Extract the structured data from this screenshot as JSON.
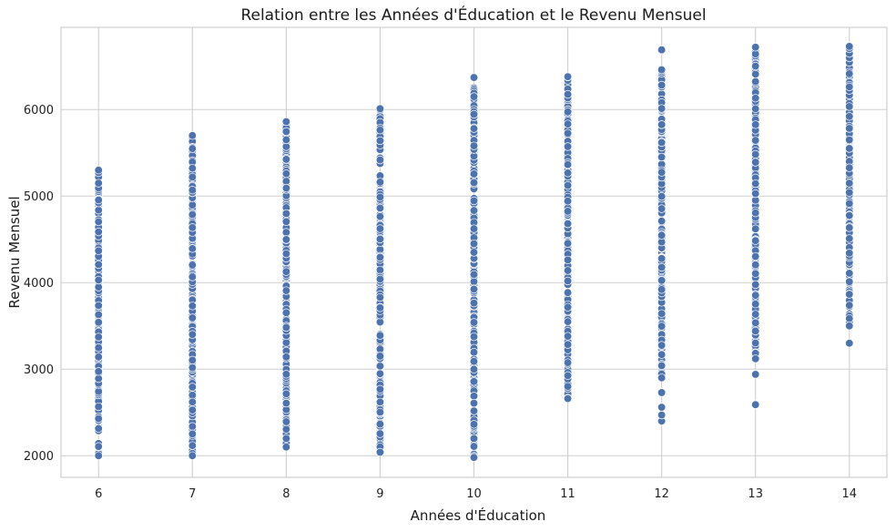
{
  "chart_data": {
    "type": "scatter",
    "title": "Relation entre les Années d'Éducation et le Revenu Mensuel",
    "xlabel": "Années d'Éducation",
    "ylabel": "Revenu Mensuel",
    "xlim": [
      5.6,
      14.4
    ],
    "ylim": [
      1750,
      6950
    ],
    "xticks": [
      6,
      7,
      8,
      9,
      10,
      11,
      12,
      13,
      14
    ],
    "yticks": [
      2000,
      3000,
      4000,
      5000,
      6000
    ],
    "grid": true,
    "point_color": "#4c72b0",
    "series": [
      {
        "points": [
          {
            "x": 6,
            "min": 2000,
            "max": 5300,
            "outliers": []
          },
          {
            "x": 7,
            "min": 2000,
            "max": 5700,
            "outliers": []
          },
          {
            "x": 8,
            "min": 2100,
            "max": 5860,
            "outliers": []
          },
          {
            "x": 9,
            "min": 2040,
            "max": 6010,
            "outliers": []
          },
          {
            "x": 10,
            "min": 1980,
            "max": 6370,
            "outliers": []
          },
          {
            "x": 11,
            "min": 2660,
            "max": 6380,
            "outliers": []
          },
          {
            "x": 12,
            "min": 2900,
            "max": 6460,
            "outliers": [
              2400,
              2470,
              2560,
              2730,
              6690
            ]
          },
          {
            "x": 13,
            "min": 3120,
            "max": 6720,
            "outliers": [
              2590,
              2940
            ]
          },
          {
            "x": 14,
            "min": 3500,
            "max": 6730,
            "outliers": [
              3300
            ]
          }
        ]
      }
    ]
  }
}
